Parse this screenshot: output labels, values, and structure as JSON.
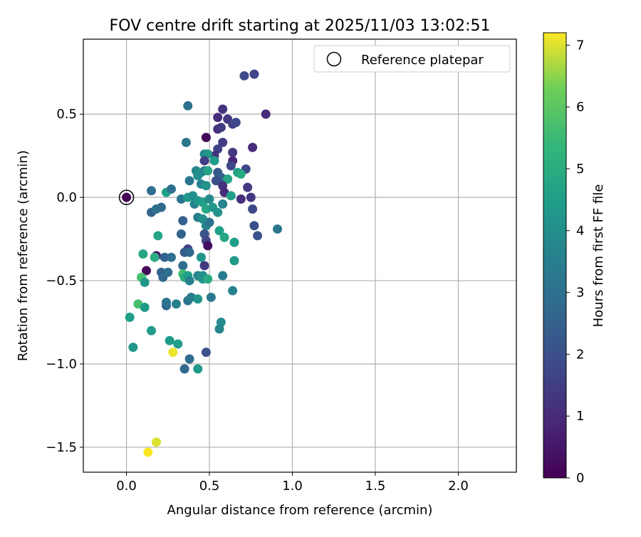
{
  "chart_data": {
    "type": "scatter",
    "title": "FOV centre drift starting at 2025/11/03 13:02:51",
    "xlabel": "Angular distance from reference (arcmin)",
    "ylabel": "Rotation from reference (arcmin)",
    "xlim": [
      -0.26,
      2.35
    ],
    "ylim": [
      -1.65,
      0.95
    ],
    "xticks": [
      0.0,
      0.5,
      1.0,
      1.5,
      2.0
    ],
    "xtick_labels": [
      "0.0",
      "0.5",
      "1.0",
      "1.5",
      "2.0"
    ],
    "yticks": [
      -1.5,
      -1.0,
      -0.5,
      0.0,
      0.5
    ],
    "ytick_labels": [
      "−1.5",
      "−1.0",
      "−0.5",
      "0.0",
      "0.5"
    ],
    "grid": true,
    "legend": {
      "label": "Reference platepar",
      "position": "top-right",
      "marker": "open-circle"
    },
    "reference_point": {
      "x": 0.0,
      "y": 0.0
    },
    "colorbar": {
      "label": "Hours from first FF file",
      "colormap": "viridis",
      "range": [
        0,
        7.2
      ],
      "ticks": [
        0,
        1,
        2,
        3,
        4,
        5,
        6,
        7
      ],
      "tick_labels": [
        "0",
        "1",
        "2",
        "3",
        "4",
        "5",
        "6",
        "7"
      ]
    },
    "points": [
      {
        "x": 0.0,
        "y": 0.0,
        "c": 0.1
      },
      {
        "x": 0.55,
        "y": 0.48,
        "c": 1.0
      },
      {
        "x": 0.58,
        "y": 0.53,
        "c": 1.2
      },
      {
        "x": 0.61,
        "y": 0.47,
        "c": 1.3
      },
      {
        "x": 0.64,
        "y": 0.44,
        "c": 1.6
      },
      {
        "x": 0.66,
        "y": 0.45,
        "c": 1.8
      },
      {
        "x": 0.55,
        "y": 0.41,
        "c": 1.1
      },
      {
        "x": 0.57,
        "y": 0.42,
        "c": 1.4
      },
      {
        "x": 0.71,
        "y": 0.73,
        "c": 1.9
      },
      {
        "x": 0.77,
        "y": 0.74,
        "c": 1.7
      },
      {
        "x": 0.84,
        "y": 0.5,
        "c": 1.0
      },
      {
        "x": 0.37,
        "y": 0.55,
        "c": 3.0
      },
      {
        "x": 0.48,
        "y": 0.36,
        "c": 0.1
      },
      {
        "x": 0.58,
        "y": 0.33,
        "c": 1.5
      },
      {
        "x": 0.76,
        "y": 0.3,
        "c": 1.0
      },
      {
        "x": 0.36,
        "y": 0.33,
        "c": 3.2
      },
      {
        "x": 0.55,
        "y": 0.29,
        "c": 1.6
      },
      {
        "x": 0.53,
        "y": 0.25,
        "c": 1.2
      },
      {
        "x": 0.64,
        "y": 0.27,
        "c": 1.3
      },
      {
        "x": 0.47,
        "y": 0.26,
        "c": 3.9
      },
      {
        "x": 0.49,
        "y": 0.26,
        "c": 4.2
      },
      {
        "x": 0.47,
        "y": 0.22,
        "c": 1.5
      },
      {
        "x": 0.53,
        "y": 0.22,
        "c": 4.5
      },
      {
        "x": 0.64,
        "y": 0.22,
        "c": 0.9
      },
      {
        "x": 0.63,
        "y": 0.19,
        "c": 1.7
      },
      {
        "x": 0.72,
        "y": 0.17,
        "c": 1.8
      },
      {
        "x": 0.42,
        "y": 0.16,
        "c": 3.8
      },
      {
        "x": 0.45,
        "y": 0.15,
        "c": 4.4
      },
      {
        "x": 0.47,
        "y": 0.16,
        "c": 3.5
      },
      {
        "x": 0.49,
        "y": 0.16,
        "c": 4.7
      },
      {
        "x": 0.55,
        "y": 0.15,
        "c": 2.2
      },
      {
        "x": 0.57,
        "y": 0.12,
        "c": 2.5
      },
      {
        "x": 0.61,
        "y": 0.11,
        "c": 4.8
      },
      {
        "x": 0.67,
        "y": 0.15,
        "c": 4.6
      },
      {
        "x": 0.69,
        "y": 0.14,
        "c": 4.9
      },
      {
        "x": 0.38,
        "y": 0.1,
        "c": 3.2
      },
      {
        "x": 0.43,
        "y": 0.13,
        "c": 4.0
      },
      {
        "x": 0.45,
        "y": 0.08,
        "c": 3.6
      },
      {
        "x": 0.48,
        "y": 0.07,
        "c": 4.1
      },
      {
        "x": 0.54,
        "y": 0.1,
        "c": 2.0
      },
      {
        "x": 0.58,
        "y": 0.07,
        "c": 1.2
      },
      {
        "x": 0.59,
        "y": 0.03,
        "c": 1.0
      },
      {
        "x": 0.63,
        "y": 0.01,
        "c": 4.5
      },
      {
        "x": 0.73,
        "y": 0.06,
        "c": 1.4
      },
      {
        "x": 0.69,
        "y": -0.01,
        "c": 1.1
      },
      {
        "x": 0.75,
        "y": 0.0,
        "c": 1.3
      },
      {
        "x": 0.15,
        "y": 0.04,
        "c": 2.9
      },
      {
        "x": 0.24,
        "y": 0.03,
        "c": 4.6
      },
      {
        "x": 0.27,
        "y": 0.05,
        "c": 3.0
      },
      {
        "x": 0.33,
        "y": -0.01,
        "c": 3.3
      },
      {
        "x": 0.37,
        "y": 0.0,
        "c": 4.4
      },
      {
        "x": 0.4,
        "y": 0.01,
        "c": 4.0
      },
      {
        "x": 0.41,
        "y": -0.04,
        "c": 3.5
      },
      {
        "x": 0.43,
        "y": -0.02,
        "c": 4.2
      },
      {
        "x": 0.46,
        "y": -0.03,
        "c": 4.5
      },
      {
        "x": 0.48,
        "y": -0.07,
        "c": 4.8
      },
      {
        "x": 0.5,
        "y": -0.01,
        "c": 3.9
      },
      {
        "x": 0.52,
        "y": -0.06,
        "c": 4.3
      },
      {
        "x": 0.55,
        "y": -0.09,
        "c": 4.1
      },
      {
        "x": 0.58,
        "y": -0.04,
        "c": 3.6
      },
      {
        "x": 0.76,
        "y": -0.07,
        "c": 1.8
      },
      {
        "x": 0.15,
        "y": -0.09,
        "c": 2.6
      },
      {
        "x": 0.18,
        "y": -0.07,
        "c": 3.0
      },
      {
        "x": 0.21,
        "y": -0.06,
        "c": 2.8
      },
      {
        "x": 0.43,
        "y": -0.12,
        "c": 3.4
      },
      {
        "x": 0.46,
        "y": -0.13,
        "c": 4.0
      },
      {
        "x": 0.48,
        "y": -0.17,
        "c": 3.7
      },
      {
        "x": 0.5,
        "y": -0.15,
        "c": 3.2
      },
      {
        "x": 0.47,
        "y": -0.22,
        "c": 2.1
      },
      {
        "x": 0.34,
        "y": -0.14,
        "c": 2.5
      },
      {
        "x": 0.33,
        "y": -0.22,
        "c": 2.6
      },
      {
        "x": 0.19,
        "y": -0.23,
        "c": 4.7
      },
      {
        "x": 0.56,
        "y": -0.2,
        "c": 4.6
      },
      {
        "x": 0.59,
        "y": -0.24,
        "c": 4.8
      },
      {
        "x": 0.77,
        "y": -0.17,
        "c": 2.0
      },
      {
        "x": 0.79,
        "y": -0.23,
        "c": 2.1
      },
      {
        "x": 0.91,
        "y": -0.19,
        "c": 3.2
      },
      {
        "x": 0.65,
        "y": -0.27,
        "c": 4.5
      },
      {
        "x": 0.48,
        "y": -0.26,
        "c": 1.7
      },
      {
        "x": 0.49,
        "y": -0.29,
        "c": 0.3
      },
      {
        "x": 0.37,
        "y": -0.31,
        "c": 1.6
      },
      {
        "x": 0.35,
        "y": -0.33,
        "c": 2.3
      },
      {
        "x": 0.38,
        "y": -0.33,
        "c": 2.7
      },
      {
        "x": 0.1,
        "y": -0.34,
        "c": 4.8
      },
      {
        "x": 0.18,
        "y": -0.35,
        "c": 0.6
      },
      {
        "x": 0.17,
        "y": -0.36,
        "c": 5.0
      },
      {
        "x": 0.23,
        "y": -0.36,
        "c": 2.5
      },
      {
        "x": 0.27,
        "y": -0.36,
        "c": 2.9
      },
      {
        "x": 0.45,
        "y": -0.36,
        "c": 4.2
      },
      {
        "x": 0.34,
        "y": -0.41,
        "c": 2.9
      },
      {
        "x": 0.47,
        "y": -0.41,
        "c": 1.4
      },
      {
        "x": 0.65,
        "y": -0.38,
        "c": 4.4
      },
      {
        "x": 0.12,
        "y": -0.44,
        "c": 0.2
      },
      {
        "x": 0.21,
        "y": -0.45,
        "c": 2.5
      },
      {
        "x": 0.22,
        "y": -0.48,
        "c": 2.7
      },
      {
        "x": 0.25,
        "y": -0.45,
        "c": 2.9
      },
      {
        "x": 0.34,
        "y": -0.46,
        "c": 5.6
      },
      {
        "x": 0.35,
        "y": -0.48,
        "c": 5.0
      },
      {
        "x": 0.37,
        "y": -0.47,
        "c": 4.6
      },
      {
        "x": 0.38,
        "y": -0.5,
        "c": 3.6
      },
      {
        "x": 0.43,
        "y": -0.47,
        "c": 3.8
      },
      {
        "x": 0.46,
        "y": -0.49,
        "c": 4.2
      },
      {
        "x": 0.46,
        "y": -0.47,
        "c": 4.0
      },
      {
        "x": 0.49,
        "y": -0.49,
        "c": 4.9
      },
      {
        "x": 0.09,
        "y": -0.48,
        "c": 5.7
      },
      {
        "x": 0.11,
        "y": -0.51,
        "c": 4.3
      },
      {
        "x": 0.58,
        "y": -0.47,
        "c": 3.4
      },
      {
        "x": 0.64,
        "y": -0.56,
        "c": 3.6
      },
      {
        "x": 0.37,
        "y": -0.62,
        "c": 3.1
      },
      {
        "x": 0.39,
        "y": -0.6,
        "c": 3.4
      },
      {
        "x": 0.43,
        "y": -0.61,
        "c": 4.2
      },
      {
        "x": 0.51,
        "y": -0.6,
        "c": 3.3
      },
      {
        "x": 0.07,
        "y": -0.64,
        "c": 5.7
      },
      {
        "x": 0.11,
        "y": -0.66,
        "c": 4.4
      },
      {
        "x": 0.24,
        "y": -0.65,
        "c": 2.7
      },
      {
        "x": 0.24,
        "y": -0.63,
        "c": 3.1
      },
      {
        "x": 0.3,
        "y": -0.64,
        "c": 3.5
      },
      {
        "x": 0.02,
        "y": -0.72,
        "c": 4.5
      },
      {
        "x": 0.15,
        "y": -0.8,
        "c": 4.4
      },
      {
        "x": 0.57,
        "y": -0.75,
        "c": 3.9
      },
      {
        "x": 0.56,
        "y": -0.79,
        "c": 3.7
      },
      {
        "x": 0.04,
        "y": -0.9,
        "c": 4.3
      },
      {
        "x": 0.26,
        "y": -0.86,
        "c": 4.4
      },
      {
        "x": 0.31,
        "y": -0.88,
        "c": 4.5
      },
      {
        "x": 0.28,
        "y": -0.93,
        "c": 7.1
      },
      {
        "x": 0.48,
        "y": -0.93,
        "c": 2.1
      },
      {
        "x": 0.38,
        "y": -0.97,
        "c": 2.9
      },
      {
        "x": 0.35,
        "y": -1.03,
        "c": 2.7
      },
      {
        "x": 0.43,
        "y": -1.03,
        "c": 4.4
      },
      {
        "x": 0.18,
        "y": -1.47,
        "c": 7.0
      },
      {
        "x": 0.13,
        "y": -1.53,
        "c": 7.2
      }
    ]
  }
}
